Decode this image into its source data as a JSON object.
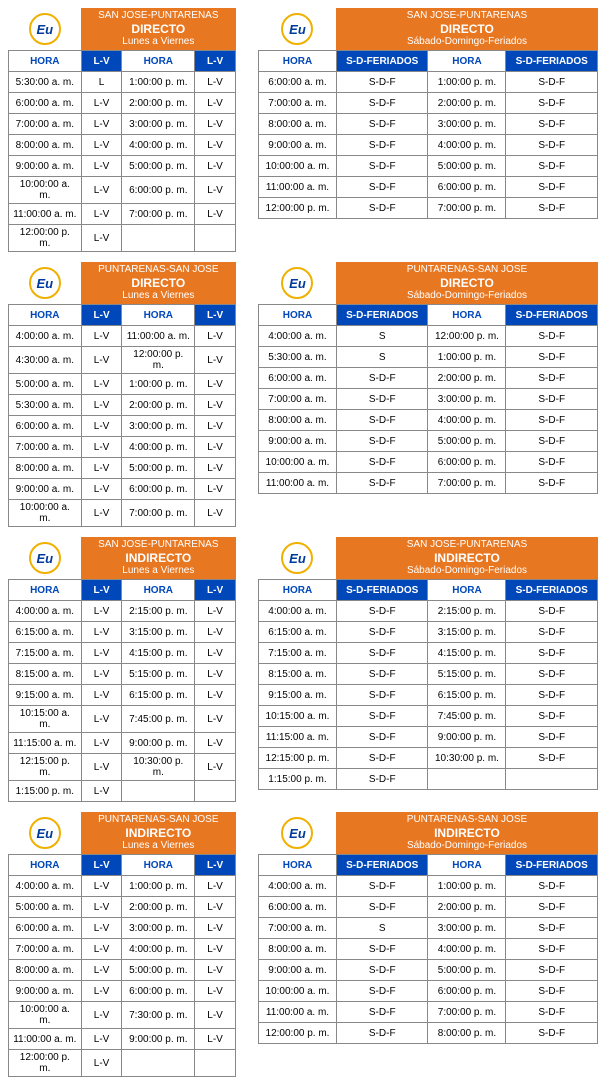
{
  "colors": {
    "orange": "#e87722",
    "blue": "#0047ba",
    "white": "#ffffff",
    "border": "#888888"
  },
  "logo_text": "Eu",
  "tables": [
    {
      "route": "SAN JOSE-PUNTARENAS",
      "type": "DIRECTO",
      "days": "Lunes a Viernes",
      "wide": false,
      "day_label": "L-V",
      "rows": [
        [
          "5:30:00 a. m.",
          "L",
          "1:00:00 p. m.",
          "L-V"
        ],
        [
          "6:00:00 a. m.",
          "L-V",
          "2:00:00 p. m.",
          "L-V"
        ],
        [
          "7:00:00 a. m.",
          "L-V",
          "3:00:00 p. m.",
          "L-V"
        ],
        [
          "8:00:00 a. m.",
          "L-V",
          "4:00:00 p. m.",
          "L-V"
        ],
        [
          "9:00:00 a. m.",
          "L-V",
          "5:00:00 p. m.",
          "L-V"
        ],
        [
          "10:00:00 a. m.",
          "L-V",
          "6:00:00 p. m.",
          "L-V"
        ],
        [
          "11:00:00 a. m.",
          "L-V",
          "7:00:00 p. m.",
          "L-V"
        ],
        [
          "12:00:00 p. m.",
          "L-V",
          "",
          ""
        ]
      ]
    },
    {
      "route": "SAN JOSE-PUNTARENAS",
      "type": "DIRECTO",
      "days": "Sábado-Domingo-Feriados",
      "wide": true,
      "day_label": "S-D-FERIADOS",
      "rows": [
        [
          "6:00:00 a. m.",
          "S-D-F",
          "1:00:00 p. m.",
          "S-D-F"
        ],
        [
          "7:00:00 a. m.",
          "S-D-F",
          "2:00:00 p. m.",
          "S-D-F"
        ],
        [
          "8:00:00 a. m.",
          "S-D-F",
          "3:00:00 p. m.",
          "S-D-F"
        ],
        [
          "9:00:00 a. m.",
          "S-D-F",
          "4:00:00 p. m.",
          "S-D-F"
        ],
        [
          "10:00:00 a. m.",
          "S-D-F",
          "5:00:00 p. m.",
          "S-D-F"
        ],
        [
          "11:00:00 a. m.",
          "S-D-F",
          "6:00:00 p. m.",
          "S-D-F"
        ],
        [
          "12:00:00 p. m.",
          "S-D-F",
          "7:00:00 p. m.",
          "S-D-F"
        ]
      ]
    },
    {
      "route": "PUNTARENAS-SAN JOSE",
      "type": "DIRECTO",
      "days": "Lunes a Viernes",
      "wide": false,
      "day_label": "L-V",
      "rows": [
        [
          "4:00:00 a. m.",
          "L-V",
          "11:00:00 a. m.",
          "L-V"
        ],
        [
          "4:30:00 a. m.",
          "L-V",
          "12:00:00 p. m.",
          "L-V"
        ],
        [
          "5:00:00 a. m.",
          "L-V",
          "1:00:00 p. m.",
          "L-V"
        ],
        [
          "5:30:00 a. m.",
          "L-V",
          "2:00:00 p. m.",
          "L-V"
        ],
        [
          "6:00:00 a. m.",
          "L-V",
          "3:00:00 p. m.",
          "L-V"
        ],
        [
          "7:00:00 a. m.",
          "L-V",
          "4:00:00 p. m.",
          "L-V"
        ],
        [
          "8:00:00 a. m.",
          "L-V",
          "5:00:00 p. m.",
          "L-V"
        ],
        [
          "9:00:00 a. m.",
          "L-V",
          "6:00:00 p. m.",
          "L-V"
        ],
        [
          "10:00:00 a. m.",
          "L-V",
          "7:00:00 p. m.",
          "L-V"
        ]
      ]
    },
    {
      "route": "PUNTARENAS-SAN JOSE",
      "type": "DIRECTO",
      "days": "Sábado-Domingo-Feriados",
      "wide": true,
      "day_label": "S-D-FERIADOS",
      "rows": [
        [
          "4:00:00 a. m.",
          "S",
          "12:00:00 p. m.",
          "S-D-F"
        ],
        [
          "5:30:00 a. m.",
          "S",
          "1:00:00 p. m.",
          "S-D-F"
        ],
        [
          "6:00:00 a. m.",
          "S-D-F",
          "2:00:00 p. m.",
          "S-D-F"
        ],
        [
          "7:00:00 a. m.",
          "S-D-F",
          "3:00:00 p. m.",
          "S-D-F"
        ],
        [
          "8:00:00 a. m.",
          "S-D-F",
          "4:00:00 p. m.",
          "S-D-F"
        ],
        [
          "9:00:00 a. m.",
          "S-D-F",
          "5:00:00 p. m.",
          "S-D-F"
        ],
        [
          "10:00:00 a. m.",
          "S-D-F",
          "6:00:00 p. m.",
          "S-D-F"
        ],
        [
          "11:00:00 a. m.",
          "S-D-F",
          "7:00:00 p. m.",
          "S-D-F"
        ]
      ]
    },
    {
      "route": "SAN JOSE-PUNTARENAS",
      "type": "INDIRECTO",
      "days": "Lunes a Viernes",
      "wide": false,
      "day_label": "L-V",
      "rows": [
        [
          "4:00:00 a. m.",
          "L-V",
          "2:15:00 p. m.",
          "L-V"
        ],
        [
          "6:15:00 a. m.",
          "L-V",
          "3:15:00 p. m.",
          "L-V"
        ],
        [
          "7:15:00 a. m.",
          "L-V",
          "4:15:00 p. m.",
          "L-V"
        ],
        [
          "8:15:00 a. m.",
          "L-V",
          "5:15:00 p. m.",
          "L-V"
        ],
        [
          "9:15:00 a. m.",
          "L-V",
          "6:15:00 p. m.",
          "L-V"
        ],
        [
          "10:15:00 a. m.",
          "L-V",
          "7:45:00 p. m.",
          "L-V"
        ],
        [
          "11:15:00 a. m.",
          "L-V",
          "9:00:00 p. m.",
          "L-V"
        ],
        [
          "12:15:00 p. m.",
          "L-V",
          "10:30:00 p. m.",
          "L-V"
        ],
        [
          "1:15:00 p. m.",
          "L-V",
          "",
          ""
        ]
      ]
    },
    {
      "route": "SAN JOSE-PUNTARENAS",
      "type": "INDIRECTO",
      "days": "Sábado-Domingo-Feriados",
      "wide": true,
      "day_label": "S-D-FERIADOS",
      "rows": [
        [
          "4:00:00 a. m.",
          "S-D-F",
          "2:15:00 p. m.",
          "S-D-F"
        ],
        [
          "6:15:00 a. m.",
          "S-D-F",
          "3:15:00 p. m.",
          "S-D-F"
        ],
        [
          "7:15:00 a. m.",
          "S-D-F",
          "4:15:00 p. m.",
          "S-D-F"
        ],
        [
          "8:15:00 a. m.",
          "S-D-F",
          "5:15:00 p. m.",
          "S-D-F"
        ],
        [
          "9:15:00 a. m.",
          "S-D-F",
          "6:15:00 p. m.",
          "S-D-F"
        ],
        [
          "10:15:00 a. m.",
          "S-D-F",
          "7:45:00 p. m.",
          "S-D-F"
        ],
        [
          "11:15:00 a. m.",
          "S-D-F",
          "9:00:00 p. m.",
          "S-D-F"
        ],
        [
          "12:15:00 p. m.",
          "S-D-F",
          "10:30:00 p. m.",
          "S-D-F"
        ],
        [
          "1:15:00 p. m.",
          "S-D-F",
          "",
          ""
        ]
      ]
    },
    {
      "route": "PUNTARENAS-SAN JOSE",
      "type": "INDIRECTO",
      "days": "Lunes a Viernes",
      "wide": false,
      "day_label": "L-V",
      "rows": [
        [
          "4:00:00 a. m.",
          "L-V",
          "1:00:00 p. m.",
          "L-V"
        ],
        [
          "5:00:00 a. m.",
          "L-V",
          "2:00:00 p. m.",
          "L-V"
        ],
        [
          "6:00:00 a. m.",
          "L-V",
          "3:00:00 p. m.",
          "L-V"
        ],
        [
          "7:00:00 a. m.",
          "L-V",
          "4:00:00 p. m.",
          "L-V"
        ],
        [
          "8:00:00 a. m.",
          "L-V",
          "5:00:00 p. m.",
          "L-V"
        ],
        [
          "9:00:00 a. m.",
          "L-V",
          "6:00:00 p. m.",
          "L-V"
        ],
        [
          "10:00:00 a. m.",
          "L-V",
          "7:30:00 p. m.",
          "L-V"
        ],
        [
          "11:00:00 a. m.",
          "L-V",
          "9:00:00 p. m.",
          "L-V"
        ],
        [
          "12:00:00 p. m.",
          "L-V",
          "",
          ""
        ]
      ]
    },
    {
      "route": "PUNTARENAS-SAN JOSE",
      "type": "INDIRECTO",
      "days": "Sábado-Domingo-Feriados",
      "wide": true,
      "day_label": "S-D-FERIADOS",
      "rows": [
        [
          "4:00:00 a. m.",
          "S-D-F",
          "1:00:00 p. m.",
          "S-D-F"
        ],
        [
          "6:00:00 a. m.",
          "S-D-F",
          "2:00:00 p. m.",
          "S-D-F"
        ],
        [
          "7:00:00 a. m.",
          "S",
          "3:00:00 p. m.",
          "S-D-F"
        ],
        [
          "8:00:00 a. m.",
          "S-D-F",
          "4:00:00 p. m.",
          "S-D-F"
        ],
        [
          "9:00:00 a. m.",
          "S-D-F",
          "5:00:00 p. m.",
          "S-D-F"
        ],
        [
          "10:00:00 a. m.",
          "S-D-F",
          "6:00:00 p. m.",
          "S-D-F"
        ],
        [
          "11:00:00 a. m.",
          "S-D-F",
          "7:00:00 p. m.",
          "S-D-F"
        ],
        [
          "12:00:00 p. m.",
          "S-D-F",
          "8:00:00 p. m.",
          "S-D-F"
        ]
      ]
    }
  ],
  "labels": {
    "hora": "HORA"
  }
}
